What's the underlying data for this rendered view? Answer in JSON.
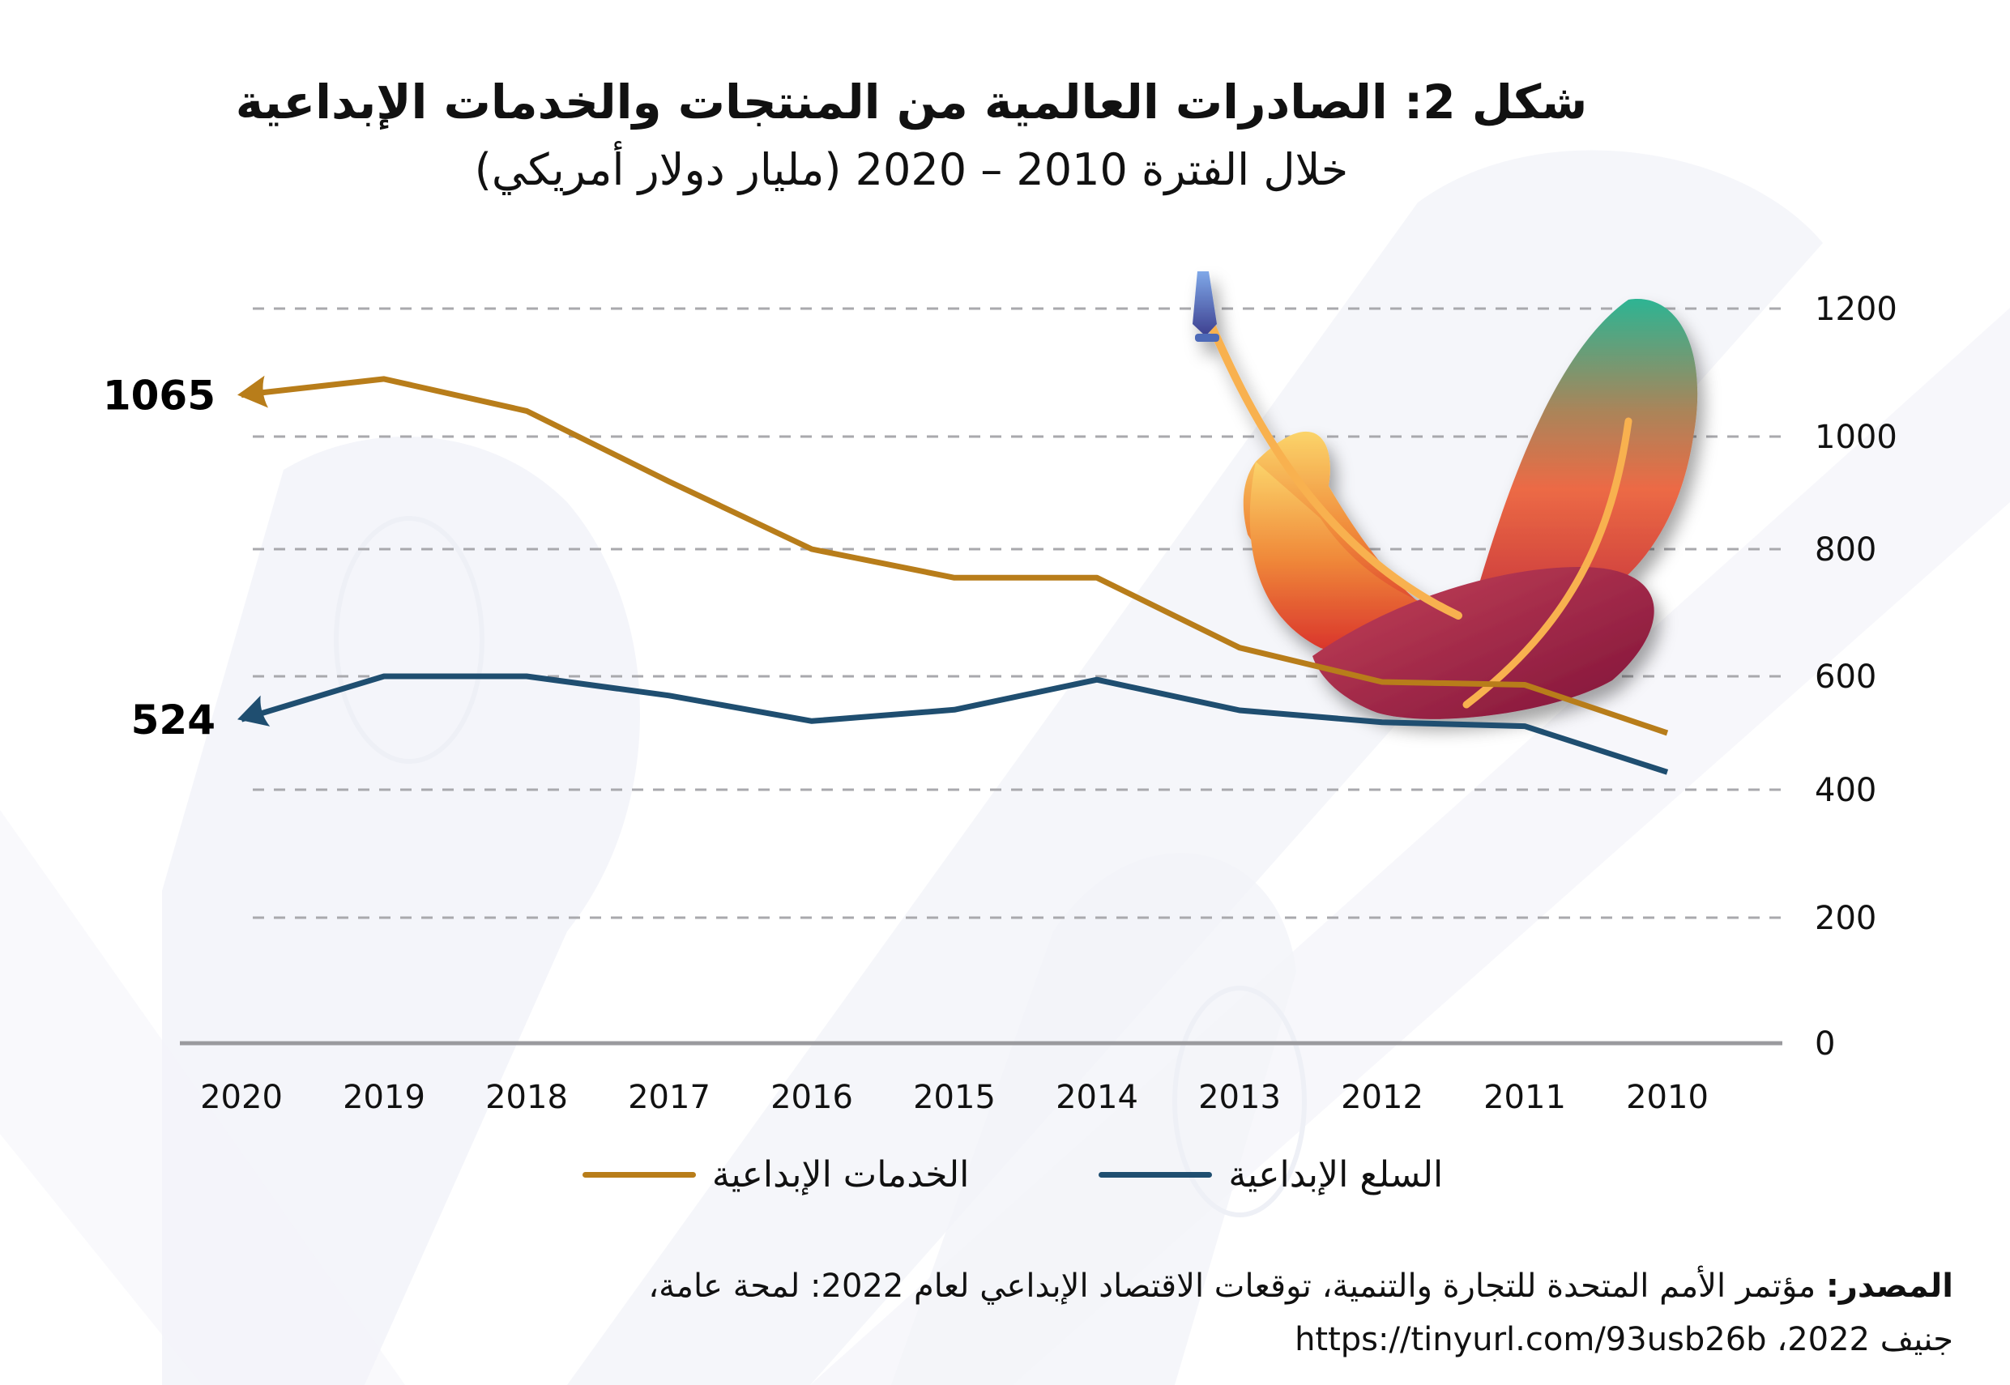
{
  "title": {
    "main": "شكل 2: الصادرات العالمية من المنتجات والخدمات الإبداعية",
    "sub": "خلال الفترة 2010 – 2020 (مليار دولار أمريكي)"
  },
  "colors": {
    "services": "#b87d1a",
    "goods": "#1f4e70",
    "grid": "#a9a9ad",
    "axis": "#9a9a9e",
    "background_shapes": "#f2f3f8"
  },
  "legend": {
    "items": [
      {
        "label": "السلع الإبداعية",
        "color": "#1f4e70"
      },
      {
        "label": "الخدمات الإبداعية",
        "color": "#b87d1a"
      }
    ]
  },
  "source": {
    "label": "المصدر:",
    "text": "مؤتمر الأمم المتحدة للتجارة والتنمية، توقعات الاقتصاد الإبداعي لعام 2022: لمحة عامة،",
    "line2_prefix": "جنيف 2022،",
    "url": "https://tinyurl.com/93usb26b"
  },
  "illustration": {
    "icon": "feather-pen-icon"
  },
  "chart_data": {
    "type": "line",
    "title": "شكل 2: الصادرات العالمية من المنتجات والخدمات الإبداعية",
    "subtitle": "خلال الفترة 2010 – 2020 (مليار دولار أمريكي)",
    "xlabel": "",
    "ylabel": "",
    "x": [
      "2020",
      "2019",
      "2018",
      "2017",
      "2016",
      "2015",
      "2014",
      "2013",
      "2012",
      "2011",
      "2010"
    ],
    "x_direction": "right-to-left",
    "y_ticks": [
      "0",
      "200",
      "400",
      "600",
      "800",
      "1000",
      "1200"
    ],
    "ylim": [
      0,
      1200
    ],
    "y_axis_position": "right",
    "grid": true,
    "legend_position": "bottom",
    "series": [
      {
        "name": "الخدمات الإبداعية",
        "color": "#b87d1a",
        "values": [
          1065,
          1090,
          1040,
          920,
          800,
          755,
          755,
          645,
          590,
          585,
          500
        ],
        "end_label": "1065"
      },
      {
        "name": "السلع الإبداعية",
        "color": "#1f4e70",
        "values": [
          524,
          600,
          600,
          566,
          521,
          541,
          594,
          540,
          519,
          512,
          431
        ],
        "end_label": "524"
      }
    ]
  }
}
